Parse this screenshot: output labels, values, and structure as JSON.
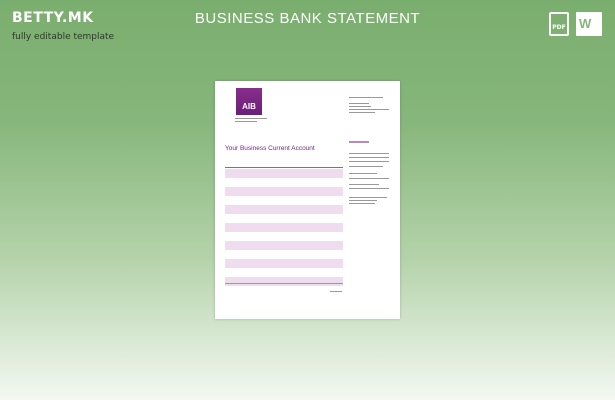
{
  "header": {
    "brand": "BETTY.MK",
    "tagline": "fully editable template",
    "title": "BUSINESS BANK STATEMENT",
    "pdf_label": "PDF",
    "word_label": "W"
  },
  "document": {
    "bank_logo": "AIB",
    "account_title": "Your Business Current Account",
    "accent": "#6a1f7a",
    "row_highlight": "#f0dcef"
  }
}
